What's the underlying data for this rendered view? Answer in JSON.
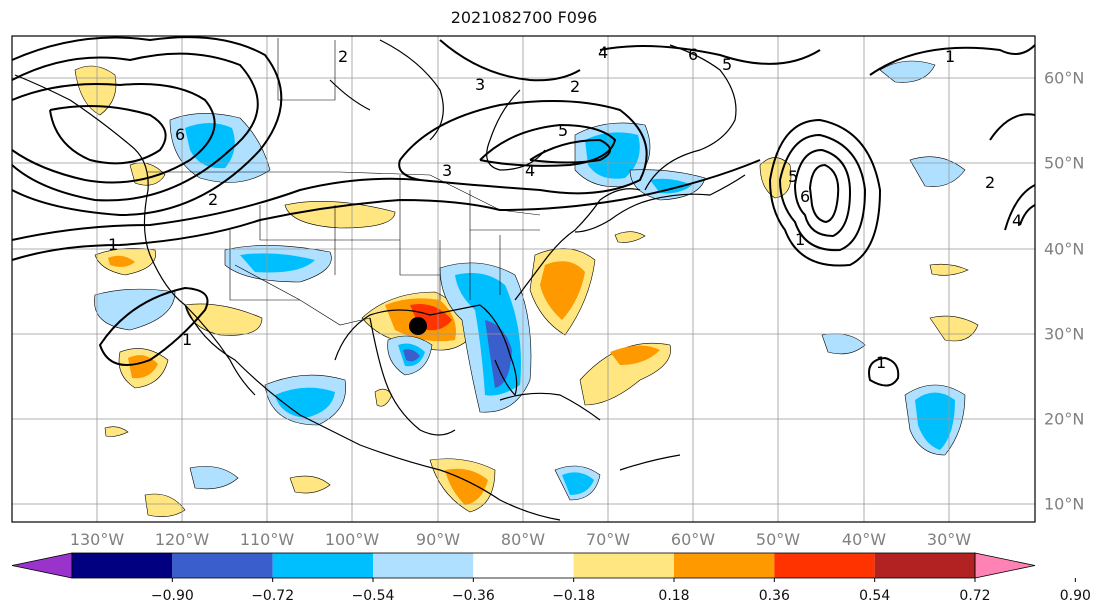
{
  "title": "2021082700 F096",
  "axes": {
    "lon_labels": [
      "130°W",
      "120°W",
      "110°W",
      "100°W",
      "90°W",
      "80°W",
      "70°W",
      "60°W",
      "50°W",
      "40°W",
      "30°W"
    ],
    "lat_labels": [
      "60°N",
      "50°N",
      "40°N",
      "30°N",
      "20°N",
      "10°N"
    ]
  },
  "colorbar": {
    "colors": [
      "#9933cc",
      "#000080",
      "#3a5fcd",
      "#00bfff",
      "#b0e0ff",
      "#ffffff",
      "#ffe680",
      "#ff9900",
      "#ff3300",
      "#b22222",
      "#ff82b4"
    ],
    "tick_labels": [
      "−0.90",
      "−0.72",
      "−0.54",
      "−0.36",
      "−0.18",
      "0.18",
      "0.36",
      "0.54",
      "0.72",
      "0.90"
    ]
  },
  "contour_labels": [
    "2",
    "4",
    "3",
    "2",
    "6",
    "5",
    "1",
    "5",
    "4",
    "3",
    "6",
    "1",
    "6",
    "2",
    "5",
    "1",
    "2",
    "1",
    "1",
    "4"
  ],
  "marker": "storm-center-dot"
}
